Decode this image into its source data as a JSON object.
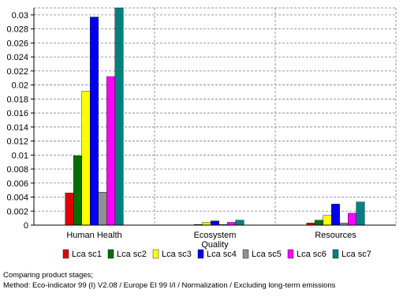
{
  "chart_data": {
    "type": "bar",
    "categories": [
      "Human Health",
      "Ecosystem Quality",
      "Resources"
    ],
    "category_lines": [
      [
        "Human Health"
      ],
      [
        "Ecosystem",
        "Quality"
      ],
      [
        "Resources"
      ]
    ],
    "ylim": [
      0,
      0.031
    ],
    "yticks": [
      0,
      0.002,
      0.004,
      0.006,
      0.008,
      0.01,
      0.012,
      0.014,
      0.016,
      0.018,
      0.02,
      0.022,
      0.024,
      0.026,
      0.028,
      0.03
    ],
    "ytick_labels": [
      "0",
      "0.002",
      "0.004",
      "0.006",
      "0.008",
      "0.01",
      "0.012",
      "0.014",
      "0.016",
      "0.018",
      "0.02",
      "0.022",
      "0.024",
      "0.026",
      "0.028",
      "0.03"
    ],
    "grid": true,
    "legend_position": "bottom",
    "series": [
      {
        "name": "Lca sc1",
        "color": "#e00000",
        "values": [
          0.0046,
          0.0,
          0.0003
        ]
      },
      {
        "name": "Lca sc2",
        "color": "#007000",
        "values": [
          0.0099,
          0.0001,
          0.0007
        ]
      },
      {
        "name": "Lca sc3",
        "color": "#ffff00",
        "values": [
          0.0191,
          0.0004,
          0.0014
        ]
      },
      {
        "name": "Lca sc4",
        "color": "#0000ee",
        "values": [
          0.0297,
          0.0006,
          0.003
        ]
      },
      {
        "name": "Lca sc5",
        "color": "#909090",
        "values": [
          0.0047,
          0.0001,
          0.0003
        ]
      },
      {
        "name": "Lca sc6",
        "color": "#ff00ff",
        "values": [
          0.0212,
          0.0004,
          0.0017
        ]
      },
      {
        "name": "Lca sc7",
        "color": "#008080",
        "values": [
          0.0316,
          0.0007,
          0.0033
        ]
      }
    ]
  },
  "caption": {
    "line1": "Comparing product stages;",
    "line2": "Method: Eco-indicator 99 (I) V2.08 / Europe EI 99 I/I / Normalization / Excluding long-term emissions"
  }
}
